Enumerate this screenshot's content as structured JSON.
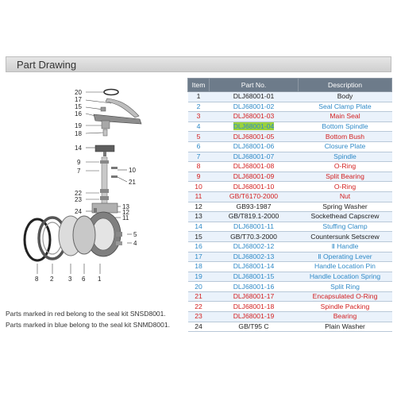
{
  "section_title": "Part Drawing",
  "table": {
    "headers": [
      "Item",
      "Part No.",
      "Description"
    ],
    "rows": [
      {
        "item": "1",
        "part": "DLJ68001-01",
        "desc": "Body",
        "color": "black"
      },
      {
        "item": "2",
        "part": "DLJ68001-02",
        "desc": "Seal Clamp Plate",
        "color": "blue"
      },
      {
        "item": "3",
        "part": "DLJ68001-03",
        "desc": "Main Seal",
        "color": "red"
      },
      {
        "item": "4",
        "part": "DLJ68001-04",
        "desc": "Bottom Spindle",
        "color": "blue",
        "highlight": true
      },
      {
        "item": "5",
        "part": "DLJ68001-05",
        "desc": "Bottom Bush",
        "color": "red"
      },
      {
        "item": "6",
        "part": "DLJ68001-06",
        "desc": "Closure Plate",
        "color": "blue"
      },
      {
        "item": "7",
        "part": "DLJ68001-07",
        "desc": "Spindle",
        "color": "blue"
      },
      {
        "item": "8",
        "part": "DLJ68001-08",
        "desc": "O-Ring",
        "color": "red"
      },
      {
        "item": "9",
        "part": "DLJ68001-09",
        "desc": "Split Bearing",
        "color": "red"
      },
      {
        "item": "10",
        "part": "DLJ68001-10",
        "desc": "O-Ring",
        "color": "red"
      },
      {
        "item": "11",
        "part": "GB/T6170-2000",
        "desc": "Nut",
        "color": "red"
      },
      {
        "item": "12",
        "part": "GB93-1987",
        "desc": "Spring Washer",
        "color": "black"
      },
      {
        "item": "13",
        "part": "GB/T819.1-2000",
        "desc": "Sockethead Capscrew",
        "color": "black"
      },
      {
        "item": "14",
        "part": "DLJ68001-11",
        "desc": "Stuffing Clamp",
        "color": "blue"
      },
      {
        "item": "15",
        "part": "GB/T70.3-2000",
        "desc": "Countersunk Setscrew",
        "color": "black"
      },
      {
        "item": "16",
        "part": "DLJ68002-12",
        "desc": "Ⅱ Handle",
        "color": "blue"
      },
      {
        "item": "17",
        "part": "DLJ68002-13",
        "desc": "Ⅱ Operating Lever",
        "color": "blue"
      },
      {
        "item": "18",
        "part": "DLJ68001-14",
        "desc": "Handle Location Pin",
        "color": "blue"
      },
      {
        "item": "19",
        "part": "DLJ68001-15",
        "desc": "Handle Location Spring",
        "color": "blue"
      },
      {
        "item": "20",
        "part": "DLJ68001-16",
        "desc": "Split Ring",
        "color": "blue"
      },
      {
        "item": "21",
        "part": "DLJ68001-17",
        "desc": "Encapsulated O-Ring",
        "color": "red"
      },
      {
        "item": "22",
        "part": "DLJ68001-18",
        "desc": "Spindle Packing",
        "color": "red"
      },
      {
        "item": "23",
        "part": "DLJ68001-19",
        "desc": "Bearing",
        "color": "red"
      },
      {
        "item": "24",
        "part": "GB/T95 C",
        "desc": "Plain Washer",
        "color": "black"
      }
    ]
  },
  "drawing_labels": {
    "l20": "20",
    "l17": "17",
    "l15": "15",
    "l16": "16",
    "l19": "19",
    "l18": "18",
    "l14": "14",
    "l9": "9",
    "l7": "7",
    "l10": "10",
    "l21": "21",
    "l22": "22",
    "l23": "23",
    "l24": "24",
    "l13": "13",
    "l12": "12",
    "l11": "11",
    "l5": "5",
    "l4": "4",
    "l8": "8",
    "l2": "2",
    "l3": "3",
    "l6": "6",
    "l1": "1"
  },
  "notes": {
    "red": "Parts marked in red  belong to the seal kit SNSD8001.",
    "blue": "Parts marked in blue  belong to the seal kit SNMD8001."
  },
  "colors": {
    "red": "#d21f1f",
    "blue": "#2f8ac8",
    "black": "#222222",
    "header": "#6d7b8a"
  }
}
